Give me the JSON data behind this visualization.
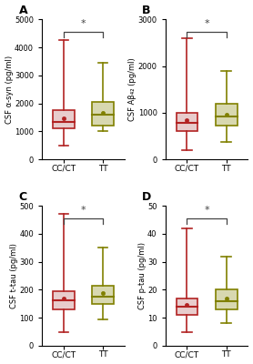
{
  "panels": [
    {
      "label": "A",
      "ylabel": "CSF α-syn (pg/ml)",
      "ylim": [
        0,
        5000
      ],
      "yticks": [
        0,
        1000,
        2000,
        3000,
        4000,
        5000
      ],
      "groups": [
        "CC/CT",
        "TT"
      ],
      "colors": [
        "#B22222",
        "#808000"
      ],
      "box_fill": [
        "#E8CCCC",
        "#D8D8B0"
      ],
      "whisker_low": [
        500,
        1000
      ],
      "whisker_high": [
        4250,
        3450
      ],
      "q1": [
        1100,
        1200
      ],
      "median": [
        1350,
        1600
      ],
      "q3": [
        1750,
        2050
      ],
      "mean": [
        1450,
        1650
      ]
    },
    {
      "label": "B",
      "ylabel": "CSF Aβ₄₂ (pg/ml)",
      "ylim": [
        0,
        3000
      ],
      "yticks": [
        0,
        1000,
        2000,
        3000
      ],
      "groups": [
        "CC/CT",
        "TT"
      ],
      "colors": [
        "#B22222",
        "#808000"
      ],
      "box_fill": [
        "#E8CCCC",
        "#D8D8B0"
      ],
      "whisker_low": [
        200,
        380
      ],
      "whisker_high": [
        2600,
        1900
      ],
      "q1": [
        600,
        720
      ],
      "median": [
        780,
        920
      ],
      "q3": [
        1000,
        1200
      ],
      "mean": [
        840,
        960
      ]
    },
    {
      "label": "C",
      "ylabel": "CSF t-tau (pg/ml)",
      "ylim": [
        0,
        500
      ],
      "yticks": [
        0,
        100,
        200,
        300,
        400,
        500
      ],
      "groups": [
        "CC/CT",
        "TT"
      ],
      "colors": [
        "#B22222",
        "#808000"
      ],
      "box_fill": [
        "#E8CCCC",
        "#D8D8B0"
      ],
      "whisker_low": [
        50,
        95
      ],
      "whisker_high": [
        470,
        350
      ],
      "q1": [
        130,
        148
      ],
      "median": [
        162,
        175
      ],
      "q3": [
        195,
        215
      ],
      "mean": [
        168,
        188
      ]
    },
    {
      "label": "D",
      "ylabel": "CSF p-tau (pg/ml)",
      "ylim": [
        0,
        50
      ],
      "yticks": [
        0,
        10,
        20,
        30,
        40,
        50
      ],
      "groups": [
        "CC/CT",
        "TT"
      ],
      "colors": [
        "#B22222",
        "#808000"
      ],
      "box_fill": [
        "#E8CCCC",
        "#D8D8B0"
      ],
      "whisker_low": [
        5,
        8
      ],
      "whisker_high": [
        42,
        32
      ],
      "q1": [
        11,
        13
      ],
      "median": [
        14,
        16
      ],
      "q3": [
        17,
        20
      ],
      "mean": [
        14.5,
        17
      ]
    }
  ],
  "sig_bracket_color": "#444444",
  "background_color": "#ffffff"
}
